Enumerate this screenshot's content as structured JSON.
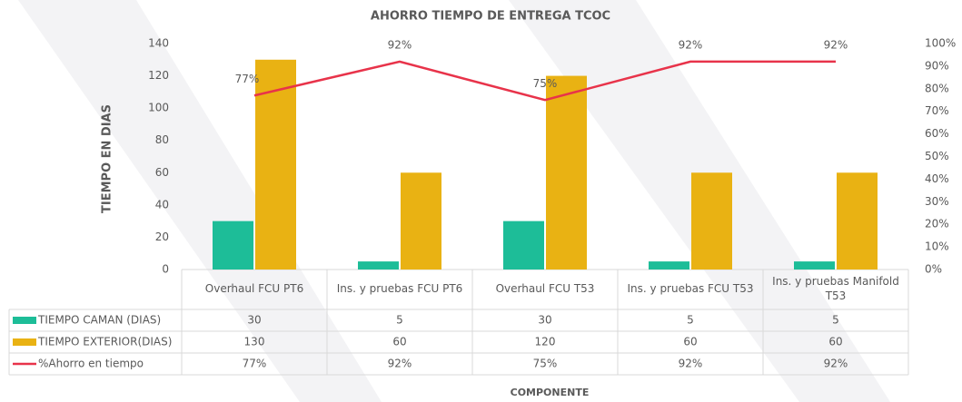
{
  "chart_data": {
    "type": "bar-line",
    "title": "AHORRO TIEMPO DE ENTREGA TCOC",
    "y_label": "TIEMPO EN DIAS",
    "x_label": "COMPONENTE",
    "categories": [
      "Overhaul FCU PT6",
      "Ins. y pruebas FCU PT6",
      "Overhaul FCU T53",
      "Ins. y pruebas FCU T53",
      "Ins. y pruebas Manifold T53"
    ],
    "series": [
      {
        "name": "TIEMPO CAMAN (DIAS)",
        "type": "bar",
        "color": "#1dbd98",
        "values": [
          30,
          5,
          30,
          5,
          5
        ]
      },
      {
        "name": "TIEMPO EXTERIOR(DIAS)",
        "type": "bar",
        "color": "#e9b213",
        "values": [
          130,
          60,
          120,
          60,
          60
        ]
      },
      {
        "name": "%Ahorro en tiempo",
        "type": "line",
        "axis": "y2",
        "color": "#e8334a",
        "values": [
          77,
          92,
          75,
          92,
          92
        ],
        "value_labels": [
          "77%",
          "92%",
          "75%",
          "92%",
          "92%"
        ]
      }
    ],
    "ylim": [
      0,
      140
    ],
    "yticks": [
      0,
      20,
      40,
      60,
      80,
      100,
      120,
      140
    ],
    "y2lim": [
      0,
      100
    ],
    "y2ticks": [
      {
        "value": 0,
        "label": "0%"
      },
      {
        "value": 10,
        "label": "10%"
      },
      {
        "value": 20,
        "label": "20%"
      },
      {
        "value": 30,
        "label": "30%"
      },
      {
        "value": 40,
        "label": "40%"
      },
      {
        "value": 50,
        "label": "50%"
      },
      {
        "value": 60,
        "label": "60%"
      },
      {
        "value": 70,
        "label": "70%"
      },
      {
        "value": 80,
        "label": "80%"
      },
      {
        "value": 90,
        "label": "90%"
      },
      {
        "value": 100,
        "label": "100%"
      }
    ],
    "grid": false,
    "data_table": true
  }
}
